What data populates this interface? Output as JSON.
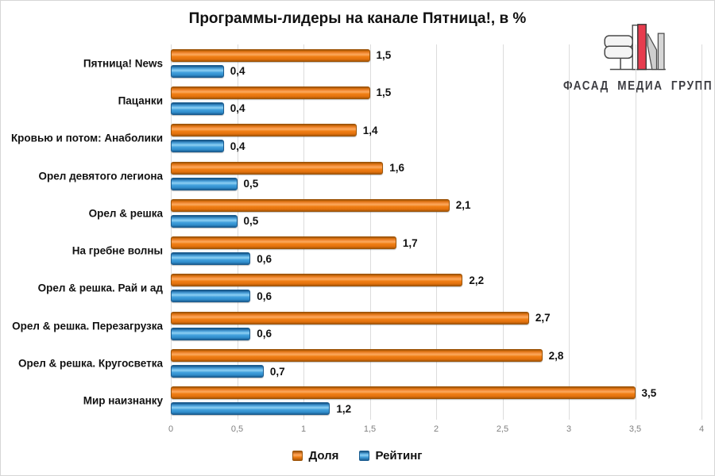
{
  "title": "Программы-лидеры на канале Пятница!, в %",
  "logo": {
    "text": "ФАСАД МЕДИА ГРУПП",
    "accent_color": "#e73c4e"
  },
  "chart_data": {
    "type": "bar",
    "orientation": "horizontal",
    "title": "Программы-лидеры на канале Пятница!, в %",
    "categories": [
      "Пятница! News",
      "Пацанки",
      "Кровью и потом: Анаболики",
      "Орел девятого легиона",
      "Орел & решка",
      "На гребне волны",
      "Орел & решка. Рай и ад",
      "Орел & решка. Перезагрузка",
      "Орел & решка. Кругосветка",
      "Мир наизнанку"
    ],
    "series": [
      {
        "name": "Доля",
        "color": "#ee7d1c",
        "values": [
          1.5,
          1.5,
          1.4,
          1.6,
          2.1,
          1.7,
          2.2,
          2.7,
          2.8,
          3.5
        ],
        "labels": [
          "1,5",
          "1,5",
          "1,4",
          "1,6",
          "2,1",
          "1,7",
          "2,2",
          "2,7",
          "2,8",
          "3,5"
        ]
      },
      {
        "name": "Рейтинг",
        "color": "#41a0dc",
        "values": [
          0.4,
          0.4,
          0.4,
          0.5,
          0.5,
          0.6,
          0.6,
          0.6,
          0.7,
          1.2
        ],
        "labels": [
          "0,4",
          "0,4",
          "0,4",
          "0,5",
          "0,5",
          "0,6",
          "0,6",
          "0,6",
          "0,7",
          "1,2"
        ]
      }
    ],
    "xlim": [
      0,
      4
    ],
    "x_ticks": [
      "0",
      "0,5",
      "1",
      "1,5",
      "2",
      "2,5",
      "3",
      "3,5",
      "4"
    ],
    "grid": true,
    "gridline_color": "#dcdcdc",
    "legend_position": "bottom"
  }
}
